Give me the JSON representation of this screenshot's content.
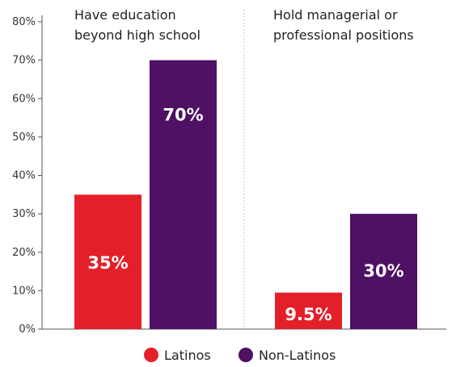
{
  "chart_data": {
    "type": "bar",
    "categories": [
      "Have education beyond high school",
      "Hold managerial or professional positions"
    ],
    "category_title_lines": [
      [
        "Have education",
        "beyond high school"
      ],
      [
        "Hold managerial or",
        "professional positions"
      ]
    ],
    "series": [
      {
        "name": "Latinos",
        "values": [
          35,
          9.5
        ],
        "labels": [
          "35%",
          "9.5%"
        ],
        "color": "#e3202a"
      },
      {
        "name": "Non-Latinos",
        "values": [
          70,
          30
        ],
        "labels": [
          "70%",
          "30%"
        ],
        "color": "#4e1163"
      }
    ],
    "ylim": [
      0,
      80
    ],
    "yticks": [
      0,
      10,
      20,
      30,
      40,
      50,
      60,
      70,
      80
    ],
    "ytick_labels": [
      "0%",
      "10%",
      "20%",
      "30%",
      "40%",
      "50%",
      "60%",
      "70%",
      "80%"
    ],
    "legend": {
      "placement": "bottom",
      "marker": "circle"
    },
    "grid": false,
    "group_divider": "dotted"
  }
}
